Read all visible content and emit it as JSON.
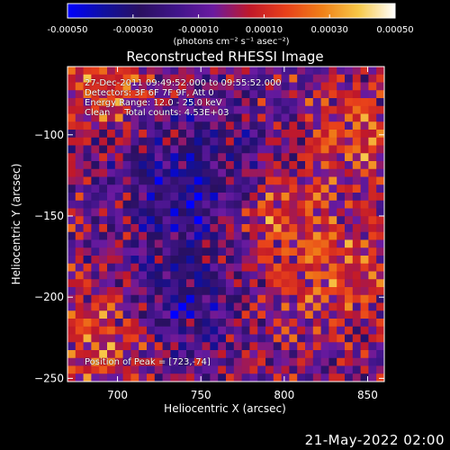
{
  "chart_data": {
    "type": "heatmap",
    "title": "Reconstructed RHESSI Image",
    "xlabel": "Heliocentric X (arcsec)",
    "ylabel": "Heliocentric Y (arcsec)",
    "xlim": [
      670,
      860
    ],
    "ylim": [
      -252,
      -58
    ],
    "x_ticks": [
      700,
      750,
      800,
      850
    ],
    "y_ticks": [
      -100,
      -150,
      -200,
      -250
    ],
    "colorbar": {
      "range": [
        -0.0005,
        0.0005
      ],
      "tick_values": [
        -0.0005,
        -0.0003,
        -0.0001,
        0.0001,
        0.0003,
        0.0005
      ],
      "tick_labels": [
        "-0.00050",
        "-0.00030",
        "-0.00010",
        "0.00010",
        "0.00030",
        "0.00050"
      ],
      "label": "(photons cm⁻² s⁻¹ asec⁻²)"
    },
    "annotations": [
      "27-Dec-2011 09:49:52.000 to 09:55:52.000",
      "Detectors: 3F 6F 7F 9F, Att 0",
      "Energy Range: 12.0 - 25.0 keV",
      "Clean     Total counts: 4.53E+03"
    ],
    "peak_label": "Position of Peak = [723,-74]",
    "peak": [
      723,
      -74
    ],
    "colors": {
      "scale": [
        "#0000ff",
        "#1010a0",
        "#2a1060",
        "#40148a",
        "#6a1aa0",
        "#c0182a",
        "#e8401a",
        "#f08018",
        "#f8c848",
        "#ffffff"
      ]
    }
  },
  "footer": {
    "date": "21-May-2022 02:00"
  }
}
